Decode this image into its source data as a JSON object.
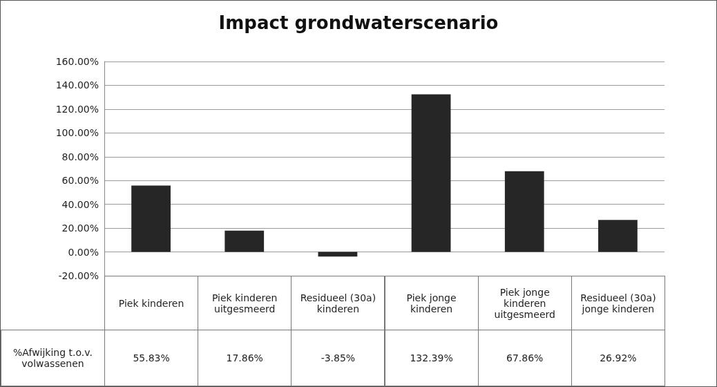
{
  "chart_data": {
    "type": "bar",
    "title": "Impact grondwaterscenario",
    "categories": [
      "Piek kinderen",
      "Piek kinderen uitgesmeerd",
      "Residueel (30a) kinderen",
      "Piek jonge kinderen",
      "Piek jonge kinderen uitgesmeerd",
      "Residueel (30a) jonge kinderen"
    ],
    "series": [
      {
        "name": "%Afwijking t.o.v. volwassenen",
        "color": "#262626",
        "values": [
          55.83,
          17.86,
          -3.85,
          132.39,
          67.86,
          26.92
        ],
        "value_labels": [
          "55.83%",
          "17.86%",
          "-3.85%",
          "132.39%",
          "67.86%",
          "26.92%"
        ]
      }
    ],
    "ylim": [
      -20,
      160
    ],
    "yticks": [
      {
        "value": -20,
        "label": "-20.00%"
      },
      {
        "value": 0,
        "label": "0.00%"
      },
      {
        "value": 20,
        "label": "20.00%"
      },
      {
        "value": 40,
        "label": "40.00%"
      },
      {
        "value": 60,
        "label": "60.00%"
      },
      {
        "value": 80,
        "label": "80.00%"
      },
      {
        "value": 100,
        "label": "100.00%"
      },
      {
        "value": 120,
        "label": "120.00%"
      },
      {
        "value": 140,
        "label": "140.00%"
      },
      {
        "value": 160,
        "label": "160.00%"
      }
    ],
    "grid": "y",
    "legend": false
  }
}
